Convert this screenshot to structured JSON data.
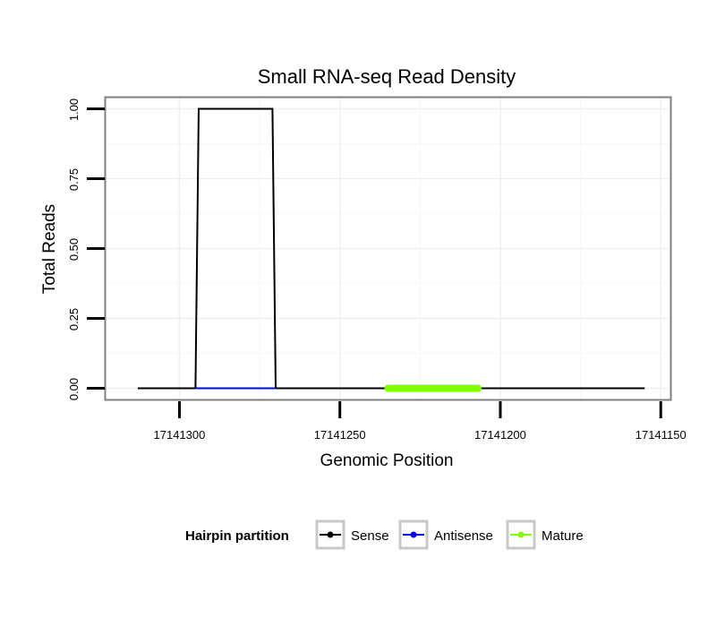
{
  "chart_data": {
    "type": "line",
    "title": "Small RNA-seq Read Density",
    "xlabel": "Genomic Position",
    "ylabel": "Total Reads",
    "x_reversed": true,
    "xlim": [
      17141323,
      17141147
    ],
    "ylim": [
      -0.04,
      1.04
    ],
    "x_ticks": [
      17141300,
      17141250,
      17141200,
      17141150
    ],
    "x_tick_labels": [
      "17141300",
      "17141250",
      "17141200",
      "17141150"
    ],
    "y_ticks": [
      0,
      0.25,
      0.5,
      0.75,
      1.0
    ],
    "y_tick_labels": [
      "0.00",
      "0.25",
      "0.50",
      "0.75",
      "1.00"
    ],
    "grid": true,
    "legend_position": "bottom",
    "legend_title": "Hairpin partition",
    "series": [
      {
        "name": "Sense",
        "color": "#000000",
        "x": [
          17141313,
          17141295,
          17141294,
          17141271,
          17141270,
          17141155
        ],
        "y": [
          0,
          0,
          1,
          1,
          0,
          0
        ]
      },
      {
        "name": "Antisense",
        "color": "#0000ff",
        "x": [
          17141295,
          17141270
        ],
        "y": [
          0,
          0
        ]
      },
      {
        "name": "Mature",
        "color": "#7fff00",
        "x": [
          17141235,
          17141207
        ],
        "y": [
          0,
          0
        ]
      }
    ]
  }
}
